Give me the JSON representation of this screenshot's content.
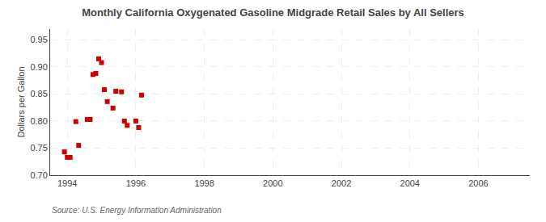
{
  "chart_data": {
    "type": "scatter",
    "title": "Monthly California Oxygenated Gasoline Midgrade Retail Sales by All Sellers",
    "ylabel": "Dollars per Gallon",
    "annotations": [
      "Source: U.S. Energy Information Administration"
    ],
    "x": [
      1993.917,
      1994.0,
      1994.083,
      1994.25,
      1994.333,
      1994.583,
      1994.667,
      1994.75,
      1994.833,
      1994.917,
      1995.0,
      1995.083,
      1995.167,
      1995.333,
      1995.417,
      1995.583,
      1995.667,
      1995.75,
      1996.0,
      1996.083,
      1996.167
    ],
    "values": [
      0.743,
      0.733,
      0.733,
      0.799,
      0.755,
      0.803,
      0.803,
      0.886,
      0.888,
      0.915,
      0.908,
      0.858,
      0.836,
      0.824,
      0.855,
      0.854,
      0.8,
      0.792,
      0.8,
      0.788,
      0.848
    ],
    "color": "#cc0000",
    "marker": "square",
    "xlim": [
      1993.5,
      2007.5
    ],
    "ylim": [
      0.7,
      0.97
    ],
    "xticks": [
      1994,
      1996,
      1998,
      2000,
      2002,
      2004,
      2006
    ],
    "yticks": [
      {
        "value": 0.7,
        "label": "0.70"
      },
      0.75,
      {
        "value": 0.8,
        "label": "0.80"
      },
      0.85,
      {
        "value": 0.9,
        "label": "0.90"
      },
      0.95
    ],
    "grid": true
  }
}
